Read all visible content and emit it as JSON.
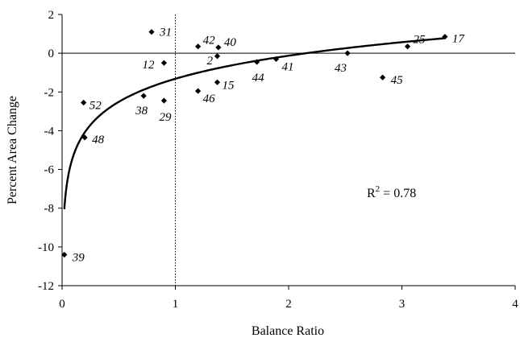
{
  "chart_data": {
    "type": "scatter",
    "xlabel": "Balance Ratio",
    "ylabel": "Percent Area Change",
    "xlim": [
      0,
      4
    ],
    "ylim": [
      -12,
      2
    ],
    "x_ticks": [
      0,
      1,
      2,
      3,
      4
    ],
    "y_ticks": [
      2,
      0,
      -2,
      -4,
      -6,
      -8,
      -10,
      -12
    ],
    "grid": false,
    "reference_lines": [
      {
        "axis": "y",
        "value": 0,
        "style": "solid"
      },
      {
        "axis": "x",
        "value": 1,
        "style": "dotted"
      }
    ],
    "points": [
      {
        "label": "31",
        "x": 0.79,
        "y": 1.1
      },
      {
        "label": "42",
        "x": 1.2,
        "y": 0.35
      },
      {
        "label": "40",
        "x": 1.38,
        "y": 0.3
      },
      {
        "label": "2",
        "x": 1.37,
        "y": -0.15
      },
      {
        "label": "12",
        "x": 0.9,
        "y": -0.5
      },
      {
        "label": "44",
        "x": 1.72,
        "y": -0.45
      },
      {
        "label": "41",
        "x": 1.89,
        "y": -0.3
      },
      {
        "label": "43",
        "x": 2.52,
        "y": 0.0
      },
      {
        "label": "25",
        "x": 3.05,
        "y": 0.35
      },
      {
        "label": "17",
        "x": 3.38,
        "y": 0.85
      },
      {
        "label": "15",
        "x": 1.37,
        "y": -1.5
      },
      {
        "label": "46",
        "x": 1.2,
        "y": -1.95
      },
      {
        "label": "45",
        "x": 2.83,
        "y": -1.25
      },
      {
        "label": "38",
        "x": 0.72,
        "y": -2.2
      },
      {
        "label": "29",
        "x": 0.9,
        "y": -2.45
      },
      {
        "label": "52",
        "x": 0.19,
        "y": -2.55
      },
      {
        "label": "48",
        "x": 0.2,
        "y": -4.35
      },
      {
        "label": "39",
        "x": 0.02,
        "y": -10.4
      }
    ],
    "trendline": {
      "type": "logarithmic",
      "a": -1.32,
      "b": 1.72,
      "x_range": [
        0.02,
        3.37
      ]
    },
    "annotation": {
      "text": "R",
      "superscript": "2",
      "rest": " = 0.78"
    }
  },
  "colors": {
    "axis": "#000000",
    "marker": "#000000",
    "background": "#ffffff"
  }
}
